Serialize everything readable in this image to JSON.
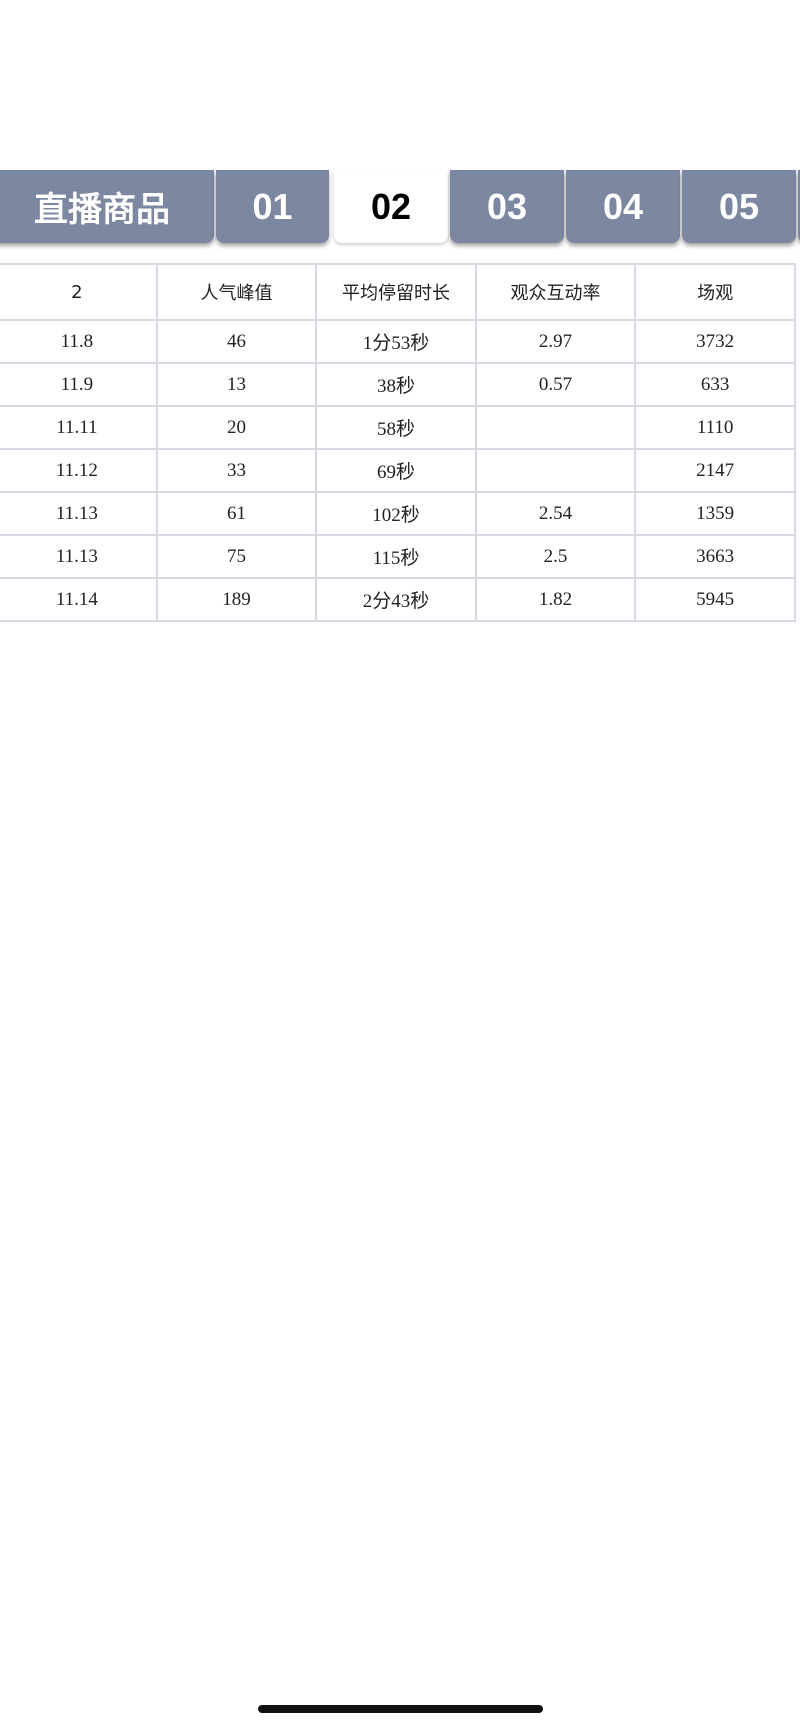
{
  "tabs": {
    "title": "直播商品",
    "items": [
      "01",
      "02",
      "03",
      "04",
      "05"
    ],
    "active": "02"
  },
  "colors": {
    "tab_bg": "#7c87a2",
    "active_tab_bg": "#ffffff",
    "grid": "#d8d9e3"
  },
  "table": {
    "headers": [
      "2",
      "人气峰值",
      "平均停留时长",
      "观众互动率",
      "场观"
    ],
    "rows": [
      [
        "11.8",
        "46",
        "1分53秒",
        "2.97",
        "3732"
      ],
      [
        "11.9",
        "13",
        "38秒",
        "0.57",
        "633"
      ],
      [
        "11.11",
        "20",
        "58秒",
        "",
        "1110"
      ],
      [
        "11.12",
        "33",
        "69秒",
        "",
        "2147"
      ],
      [
        "11.13",
        "61",
        "102秒",
        "2.54",
        "1359"
      ],
      [
        "11.13",
        "75",
        "115秒",
        "2.5",
        "3663"
      ],
      [
        "11.14",
        "189",
        "2分43秒",
        "1.82",
        "5945"
      ]
    ]
  }
}
